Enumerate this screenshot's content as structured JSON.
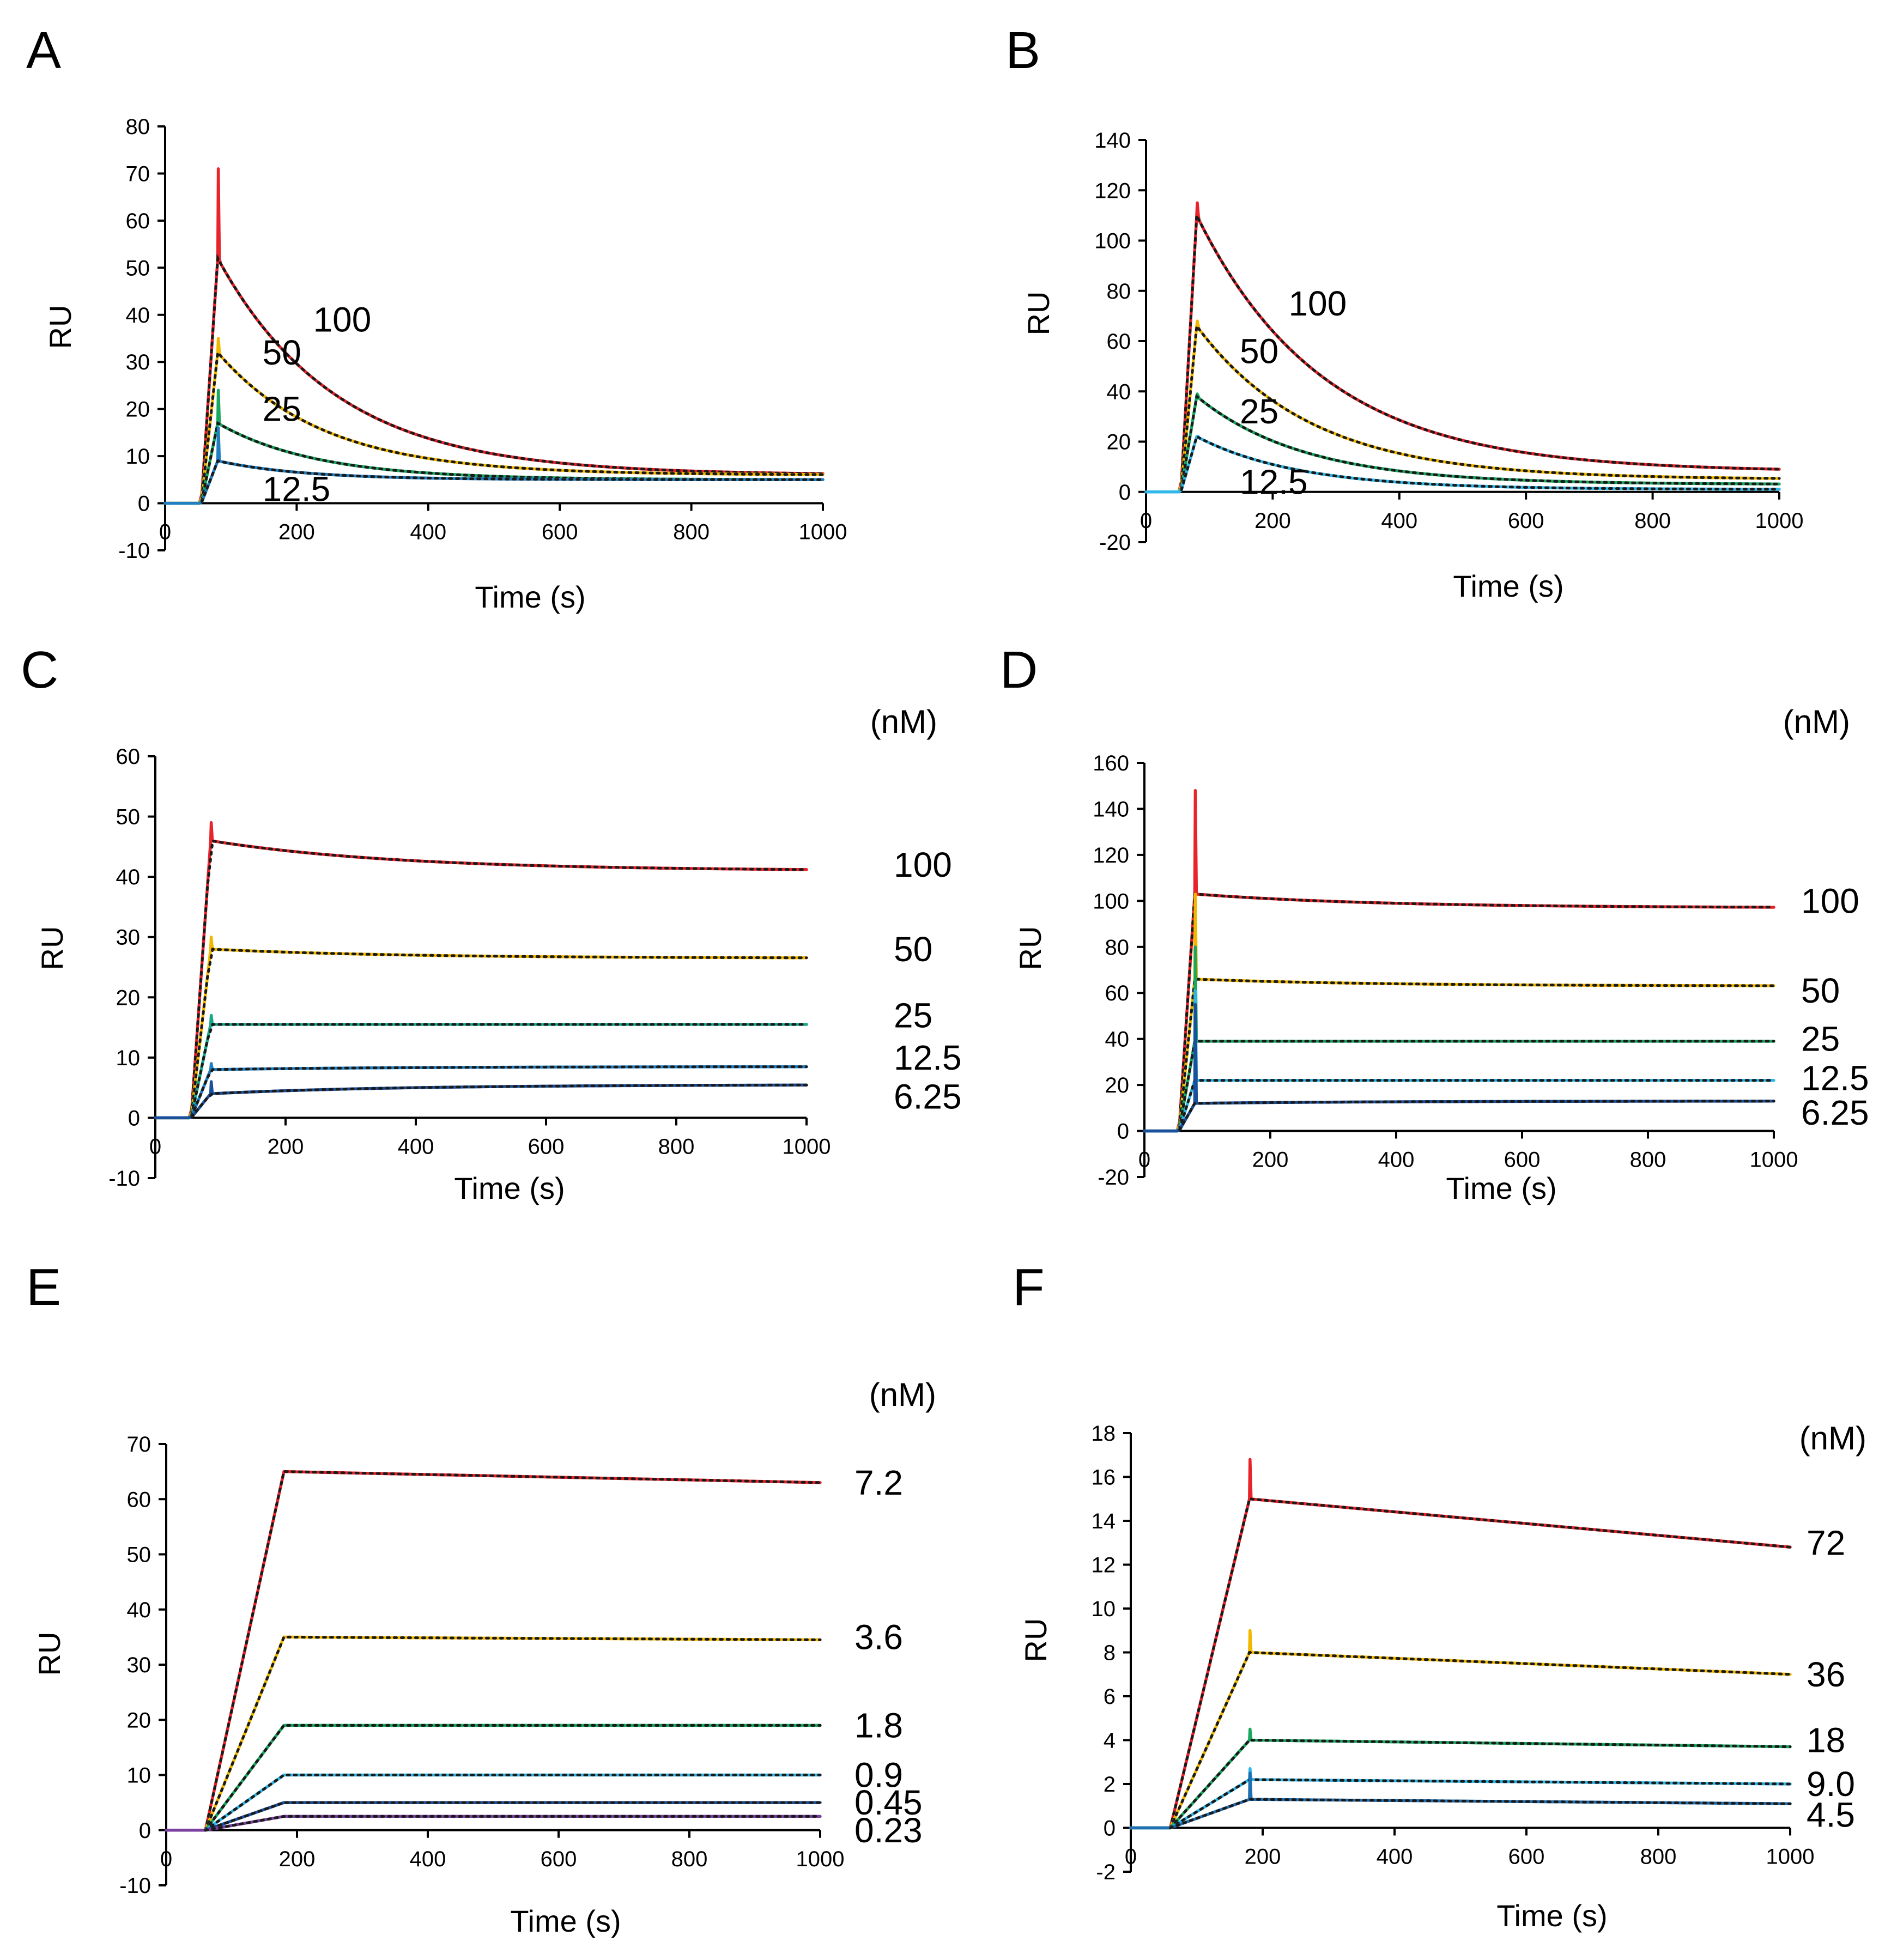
{
  "chart_data": [
    {
      "panel": "A",
      "type": "line",
      "title": "",
      "xlabel": "Time (s)",
      "ylabel": "RU",
      "xlim": [
        0,
        1000
      ],
      "ylim": [
        -10,
        80
      ],
      "xticks": [
        0,
        200,
        400,
        600,
        800,
        1000
      ],
      "yticks": [
        -10,
        0,
        10,
        20,
        30,
        40,
        50,
        60,
        70,
        80
      ],
      "unit_label": "",
      "inject_start": 55,
      "inject_end": 80,
      "model": "decay",
      "series": [
        {
          "name": "100",
          "color": "#e8232a",
          "peak": 52,
          "plateau": 6,
          "tau": 180,
          "spike": 71,
          "legend_x": 225,
          "legend_y": 39
        },
        {
          "name": "50",
          "color": "#f2b800",
          "peak": 32,
          "plateau": 6,
          "tau": 160,
          "spike": 35,
          "legend_x": 148,
          "legend_y": 32
        },
        {
          "name": "25",
          "color": "#1aa860",
          "peak": 17,
          "plateau": 5,
          "tau": 150,
          "spike": 24,
          "legend_x": 148,
          "legend_y": 20
        },
        {
          "name": "12.5",
          "color": "#1f7fc2",
          "peak": 9,
          "plateau": 5,
          "tau": 130,
          "spike": 16,
          "legend_x": 148,
          "legend_y": 3
        }
      ]
    },
    {
      "panel": "B",
      "type": "line",
      "title": "",
      "xlabel": "Time (s)",
      "ylabel": "RU",
      "xlim": [
        0,
        1000
      ],
      "ylim": [
        -20,
        140
      ],
      "xticks": [
        0,
        200,
        400,
        600,
        800,
        1000
      ],
      "yticks": [
        -20,
        0,
        20,
        40,
        60,
        80,
        100,
        120,
        140
      ],
      "unit_label": "",
      "inject_start": 55,
      "inject_end": 80,
      "model": "decay",
      "series": [
        {
          "name": "100",
          "color": "#e8232a",
          "peak": 110,
          "plateau": 8,
          "tau": 200,
          "spike": 115,
          "legend_x": 225,
          "legend_y": 75
        },
        {
          "name": "50",
          "color": "#f2b800",
          "peak": 66,
          "plateau": 5,
          "tau": 180,
          "spike": 68,
          "legend_x": 148,
          "legend_y": 56
        },
        {
          "name": "25",
          "color": "#1aa860",
          "peak": 38,
          "plateau": 3,
          "tau": 170,
          "spike": 39,
          "legend_x": 148,
          "legend_y": 32
        },
        {
          "name": "12.5",
          "color": "#2fb7e8",
          "peak": 22,
          "plateau": 1,
          "tau": 160,
          "spike": 22,
          "legend_x": 148,
          "legend_y": 4
        }
      ]
    },
    {
      "panel": "C",
      "type": "line",
      "title": "",
      "xlabel": "Time (s)",
      "ylabel": "RU",
      "xlim": [
        0,
        1000
      ],
      "ylim": [
        -10,
        60
      ],
      "xticks": [
        0,
        200,
        400,
        600,
        800,
        1000
      ],
      "yticks": [
        -10,
        0,
        10,
        20,
        30,
        40,
        50,
        60
      ],
      "unit_label": "(nM)",
      "inject_start": 55,
      "inject_end": 85,
      "model": "slow",
      "series": [
        {
          "name": "100",
          "color": "#e8232a",
          "peak": 46,
          "end": 41,
          "spike": 49,
          "legend_y": 42
        },
        {
          "name": "50",
          "color": "#f2b800",
          "peak": 28,
          "end": 26.5,
          "spike": 30,
          "legend_y": 28
        },
        {
          "name": "25",
          "color": "#1aa88a",
          "peak": 15.5,
          "end": 15.5,
          "spike": 17,
          "legend_y": 17
        },
        {
          "name": "12.5",
          "color": "#1f7fc2",
          "peak": 8,
          "end": 8.5,
          "spike": 9,
          "legend_y": 10
        },
        {
          "name": "6.25",
          "color": "#1a4f9c",
          "peak": 4,
          "end": 5.5,
          "spike": 6,
          "legend_y": 3.5
        }
      ]
    },
    {
      "panel": "D",
      "type": "line",
      "title": "",
      "xlabel": "Time (s)",
      "ylabel": "RU",
      "xlim": [
        0,
        1000
      ],
      "ylim": [
        -20,
        160
      ],
      "xticks": [
        0,
        200,
        400,
        600,
        800,
        1000
      ],
      "yticks": [
        -20,
        0,
        20,
        40,
        60,
        80,
        100,
        120,
        140,
        160
      ],
      "unit_label": "(nM)",
      "inject_start": 55,
      "inject_end": 80,
      "model": "slow",
      "series": [
        {
          "name": "100",
          "color": "#e8232a",
          "peak": 103,
          "end": 97,
          "spike": 148,
          "legend_y": 100
        },
        {
          "name": "50",
          "color": "#f2b800",
          "peak": 66,
          "end": 63,
          "spike": 103,
          "legend_y": 61
        },
        {
          "name": "25",
          "color": "#1aa860",
          "peak": 39,
          "end": 39,
          "spike": 80,
          "legend_y": 40
        },
        {
          "name": "12.5",
          "color": "#2fb7e8",
          "peak": 22,
          "end": 22,
          "spike": 61,
          "legend_y": 23
        },
        {
          "name": "6.25",
          "color": "#1a4f9c",
          "peak": 12,
          "end": 13,
          "spike": 55,
          "legend_y": 8
        }
      ]
    },
    {
      "panel": "E",
      "type": "line",
      "title": "",
      "xlabel": "Time (s)",
      "ylabel": "RU",
      "xlim": [
        0,
        1000
      ],
      "ylim": [
        -10,
        70
      ],
      "xticks": [
        0,
        200,
        400,
        600,
        800,
        1000
      ],
      "yticks": [
        -10,
        0,
        10,
        20,
        30,
        40,
        50,
        60,
        70
      ],
      "unit_label": "(nM)",
      "inject_start": 60,
      "inject_end": 180,
      "model": "linear",
      "series": [
        {
          "name": "7.2",
          "color": "#e8232a",
          "peak": 65,
          "end": 63,
          "legend_y": 63
        },
        {
          "name": "3.6",
          "color": "#f2b800",
          "peak": 35,
          "end": 34.5,
          "legend_y": 35
        },
        {
          "name": "1.8",
          "color": "#1aa860",
          "peak": 19,
          "end": 19,
          "legend_y": 19
        },
        {
          "name": "0.9",
          "color": "#2fb7e8",
          "peak": 10,
          "end": 10,
          "legend_y": 10
        },
        {
          "name": "0.45",
          "color": "#1a4f9c",
          "peak": 5,
          "end": 5,
          "legend_y": 5
        },
        {
          "name": "0.23",
          "color": "#7b3fa0",
          "peak": 2.5,
          "end": 2.5,
          "legend_y": 0
        }
      ]
    },
    {
      "panel": "F",
      "type": "line",
      "title": "",
      "xlabel": "Time (s)",
      "ylabel": "RU",
      "xlim": [
        0,
        1000
      ],
      "ylim": [
        -2,
        18
      ],
      "xticks": [
        0,
        200,
        400,
        600,
        800,
        1000
      ],
      "yticks": [
        -2,
        0,
        2,
        4,
        6,
        8,
        10,
        12,
        14,
        16,
        18
      ],
      "unit_label": "(nM)",
      "inject_start": 60,
      "inject_end": 180,
      "model": "linear",
      "series": [
        {
          "name": "72",
          "color": "#e8232a",
          "peak": 15,
          "end": 12.8,
          "spike": 16.8,
          "legend_y": 13
        },
        {
          "name": "36",
          "color": "#f2b800",
          "peak": 8,
          "end": 7,
          "spike": 9,
          "legend_y": 7
        },
        {
          "name": "18",
          "color": "#1aa860",
          "peak": 4,
          "end": 3.7,
          "spike": 4.5,
          "legend_y": 4
        },
        {
          "name": "9.0",
          "color": "#2fb7e8",
          "peak": 2.2,
          "end": 2,
          "spike": 2.7,
          "legend_y": 2
        },
        {
          "name": "4.5",
          "color": "#1f6fb2",
          "peak": 1.3,
          "end": 1.1,
          "spike": 2.5,
          "legend_y": 0.6
        }
      ]
    }
  ]
}
